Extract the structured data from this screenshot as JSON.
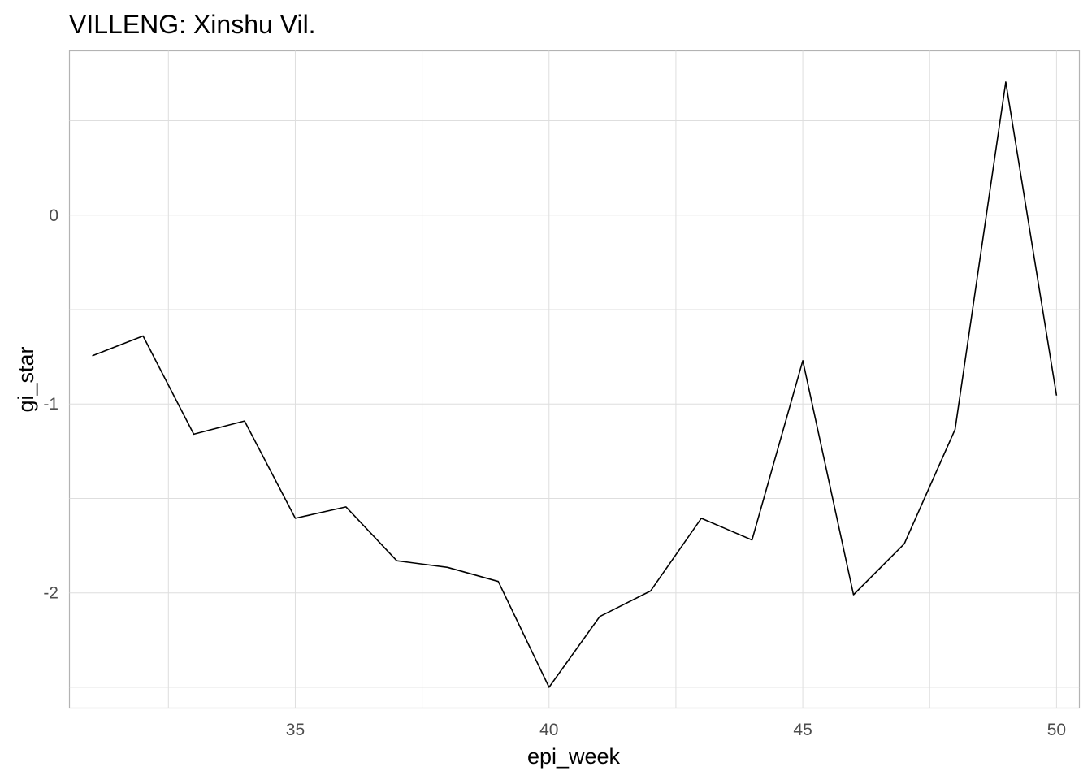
{
  "chart_data": {
    "type": "line",
    "title": "VILLENG: Xinshu Vil.",
    "xlabel": "epi_week",
    "ylabel": "gi_star",
    "x_ticks": [
      35,
      40,
      45,
      50
    ],
    "y_ticks": [
      0,
      -1,
      -2
    ],
    "xlim": [
      30.55,
      50.45
    ],
    "ylim": [
      -2.61,
      0.87
    ],
    "grid": true,
    "series": [
      {
        "color": "#000000",
        "x": [
          31,
          32,
          33,
          34,
          35,
          36,
          37,
          38,
          39,
          40,
          41,
          42,
          43,
          44,
          45,
          46,
          47,
          48,
          49,
          50
        ],
        "y": [
          -0.745,
          -0.64,
          -1.16,
          -1.09,
          -1.605,
          -1.545,
          -1.83,
          -1.865,
          -1.94,
          -2.5,
          -2.125,
          -1.99,
          -1.605,
          -1.72,
          -0.77,
          -2.01,
          -1.74,
          -1.135,
          0.705,
          -0.955
        ]
      }
    ]
  }
}
